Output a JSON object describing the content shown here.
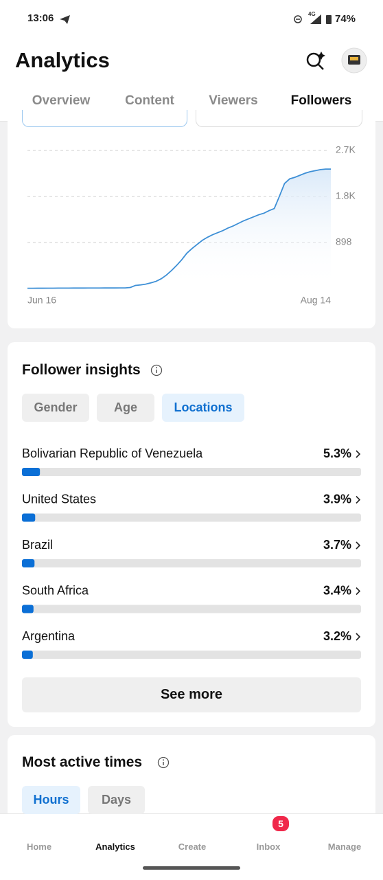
{
  "status": {
    "time": "13:06",
    "network": "4G",
    "battery": "74%"
  },
  "header": {
    "title": "Analytics"
  },
  "tabs": {
    "items": [
      "Overview",
      "Content",
      "Viewers",
      "Followers"
    ],
    "active": 3
  },
  "chart_data": [
    {
      "type": "line",
      "color": "#3d8fd6",
      "fill": "#d6e7f8",
      "categories": [
        "Jun 16",
        null,
        null,
        null,
        null,
        null,
        null,
        null,
        null,
        null,
        null,
        null,
        null,
        null,
        null,
        null,
        null,
        null,
        null,
        null,
        null,
        null,
        null,
        null,
        null,
        null,
        null,
        null,
        null,
        null,
        null,
        null,
        null,
        null,
        null,
        null,
        null,
        null,
        null,
        null,
        null,
        null,
        null,
        null,
        null,
        null,
        null,
        null,
        null,
        null,
        null,
        null,
        null,
        null,
        null,
        null,
        null,
        null,
        null,
        "Aug 14"
      ],
      "values": [
        5,
        5,
        6,
        6,
        7,
        7,
        8,
        8,
        8,
        9,
        9,
        9,
        10,
        10,
        10,
        11,
        11,
        11,
        12,
        12,
        20,
        60,
        70,
        85,
        110,
        140,
        190,
        260,
        350,
        450,
        560,
        690,
        780,
        860,
        940,
        1000,
        1050,
        1090,
        1130,
        1180,
        1220,
        1270,
        1320,
        1360,
        1400,
        1440,
        1470,
        1520,
        1560,
        1800,
        2050,
        2140,
        2170,
        2210,
        2250,
        2280,
        2300,
        2320,
        2330,
        2330
      ],
      "ylim": [
        0,
        2694
      ],
      "yticks": [
        898,
        {
          "value": 1796,
          "label": "1.8K"
        },
        {
          "value": 2694,
          "label": "2.7K"
        }
      ],
      "grid": true
    },
    {
      "type": "hbar",
      "color": "#0b6fd6",
      "track": "#e3e3e3",
      "categories": [
        "Bolivarian Republic of Venezuela",
        "United States",
        "Brazil",
        "South Africa",
        "Argentina"
      ],
      "values": [
        5.3,
        3.9,
        3.7,
        3.4,
        3.2
      ],
      "value_labels": [
        "5.3%",
        "3.9%",
        "3.7%",
        "3.4%",
        "3.2%"
      ],
      "xlim": [
        0,
        100
      ]
    }
  ],
  "insights": {
    "title": "Follower insights",
    "filters": [
      "Gender",
      "Age",
      "Locations"
    ],
    "active": 2,
    "button": "See more"
  },
  "active_times": {
    "title": "Most active times",
    "filters": [
      "Hours",
      "Days"
    ],
    "active": 0
  },
  "nav": {
    "items": [
      "Home",
      "Analytics",
      "Create",
      "Inbox",
      "Manage"
    ],
    "active": 1,
    "badge": "5"
  }
}
